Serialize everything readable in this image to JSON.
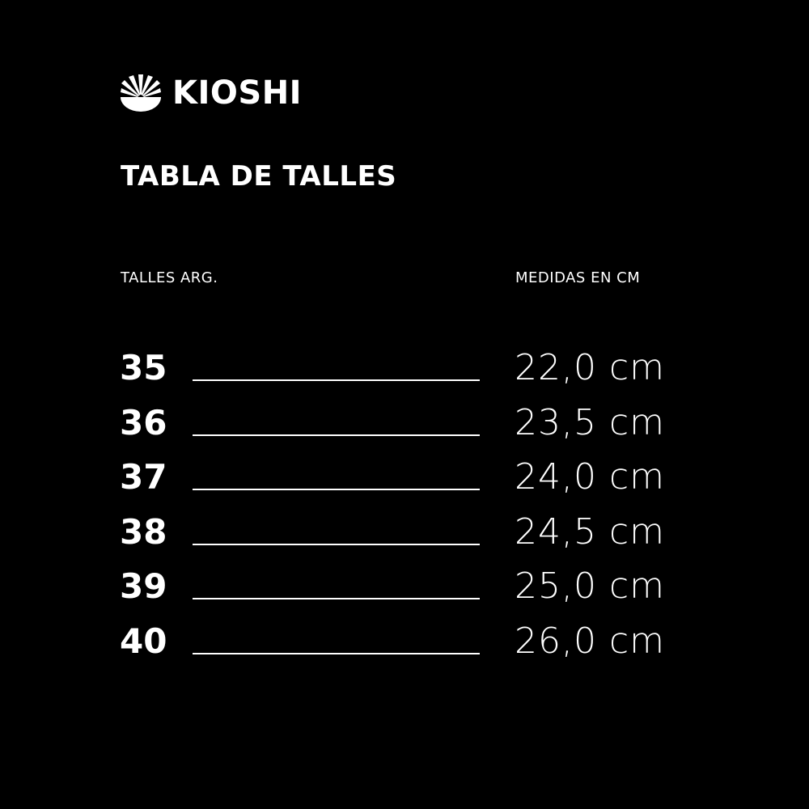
{
  "brand": {
    "name": "KIOSHI",
    "logo_icon": "lotus-bowl-icon"
  },
  "title": "TABLA DE TALLES",
  "table": {
    "headers": [
      "TALLES ARG.",
      "MEDIDAS EN CM"
    ],
    "rows": [
      {
        "size": "35",
        "measure": "22,0 cm"
      },
      {
        "size": "36",
        "measure": "23,5 cm"
      },
      {
        "size": "37",
        "measure": "24,0 cm"
      },
      {
        "size": "38",
        "measure": "24,5 cm"
      },
      {
        "size": "39",
        "measure": "25,0 cm"
      },
      {
        "size": "40",
        "measure": "26,0 cm"
      }
    ]
  },
  "colors": {
    "background": "#000000",
    "text": "#ffffff"
  }
}
